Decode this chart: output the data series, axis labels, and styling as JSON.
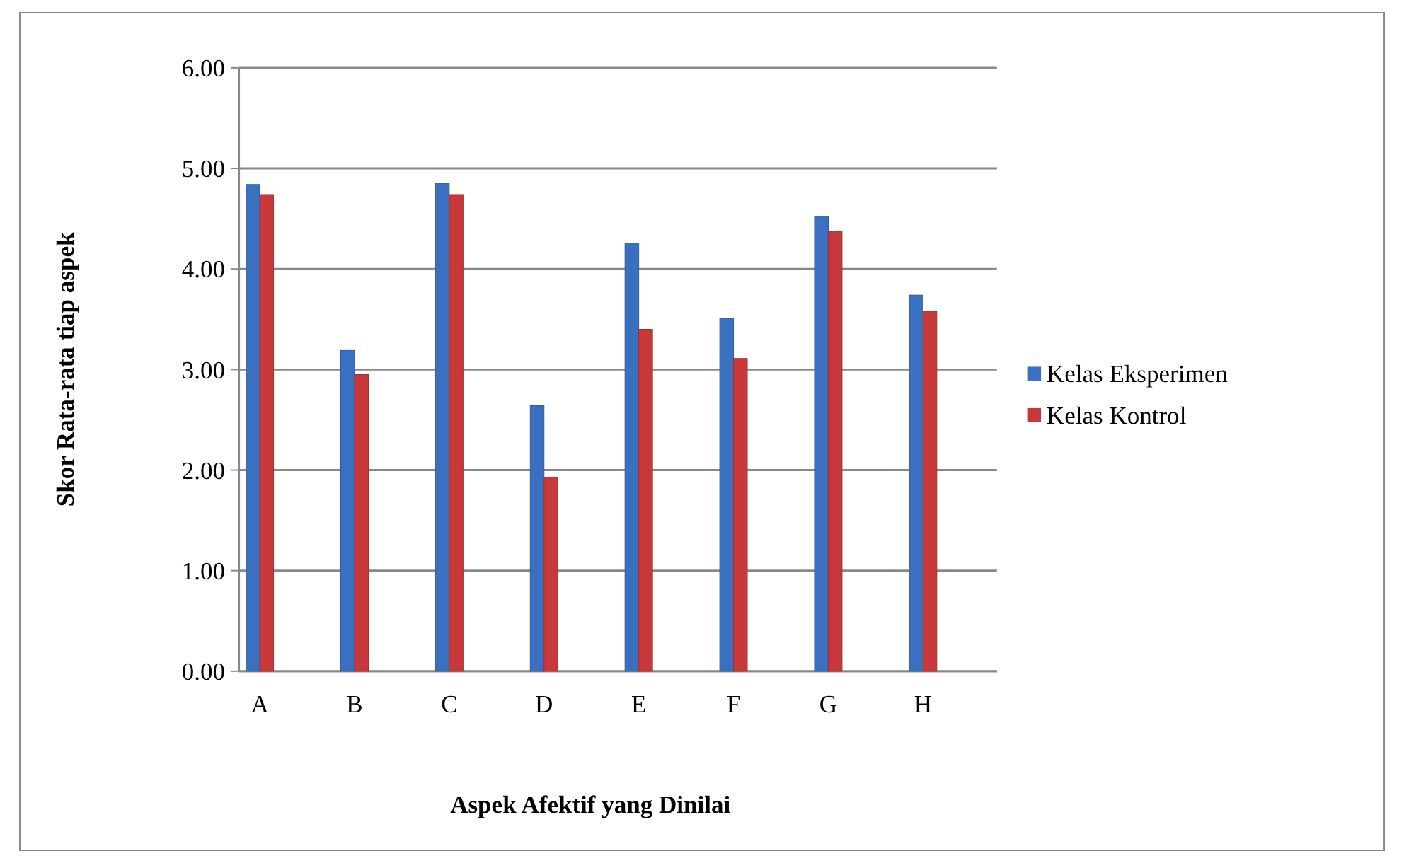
{
  "chart_data": {
    "type": "bar",
    "xlabel": "Aspek Afektif yang Dinilai",
    "ylabel": "Skor Rata-rata tiap aspek",
    "categories": [
      "A",
      "B",
      "C",
      "D",
      "E",
      "F",
      "G",
      "H"
    ],
    "series": [
      {
        "name": "Kelas Eksperimen",
        "color": "#3a70c0",
        "values": [
          4.84,
          3.19,
          4.85,
          2.64,
          4.25,
          3.51,
          4.52,
          3.74
        ]
      },
      {
        "name": "Kelas Kontrol",
        "color": "#c8383a",
        "values": [
          4.74,
          2.95,
          4.74,
          1.93,
          3.4,
          3.11,
          4.37,
          3.58
        ]
      }
    ],
    "ylim": [
      0,
      6
    ],
    "yticks": [
      {
        "value": 0,
        "label": "0.00"
      },
      {
        "value": 1,
        "label": "1.00"
      },
      {
        "value": 2,
        "label": "2.00"
      },
      {
        "value": 3,
        "label": "3.00"
      },
      {
        "value": 4,
        "label": "4.00"
      },
      {
        "value": 5,
        "label": "5.00"
      },
      {
        "value": 6,
        "label": "6.00"
      }
    ],
    "grid": "y",
    "legend": "right"
  }
}
